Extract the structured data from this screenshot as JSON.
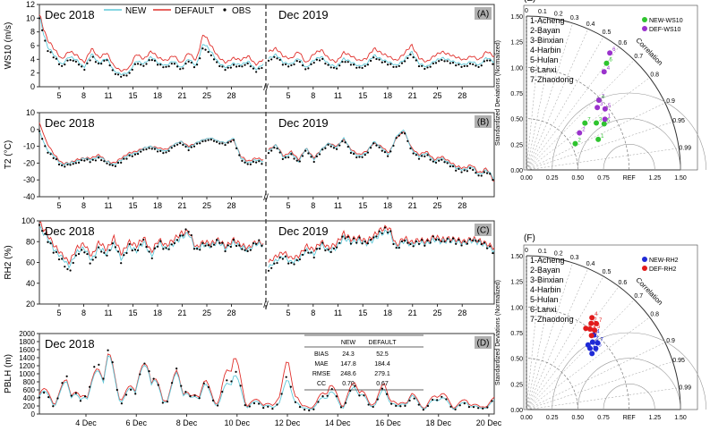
{
  "colors": {
    "new": "#5ec8d8",
    "default": "#e0302c",
    "obs": "#000000",
    "new_ws10": "#2fc42f",
    "def_ws10": "#9a32cc",
    "new_rh2": "#1f2ad6",
    "def_rh2": "#e21b1b",
    "panel_tag_bg": "#b0b0b0"
  },
  "chart_data": [
    {
      "id": "A",
      "type": "line",
      "panel_label": "(A)",
      "ylabel": "WS10 (m/s)",
      "ylim": [
        0,
        12
      ],
      "yticks": [
        "0",
        "2",
        "4",
        "6",
        "8",
        "10",
        "12"
      ],
      "xticks_left": [
        "5",
        "8",
        "11",
        "15",
        "18",
        "21",
        "25",
        "28"
      ],
      "xticks_right": [
        "5",
        "8",
        "11",
        "15",
        "18",
        "21",
        "25",
        "28"
      ],
      "period_labels": [
        "Dec 2018",
        "Dec 2019"
      ],
      "legend": [
        {
          "name": "NEW"
        },
        {
          "name": "DEFAULT"
        },
        {
          "name": "OBS"
        }
      ],
      "series_left": {
        "obs": [
          10.0,
          5.5,
          4.3,
          2.9,
          4.0,
          3.6,
          2.5,
          4.4,
          3.2,
          4.0,
          2.0,
          1.5,
          1.8,
          3.5,
          3.0,
          4.1,
          3.2,
          2.8,
          3.5,
          2.4,
          3.8,
          2.7,
          5.8,
          4.6,
          3.2,
          2.5,
          3.1,
          2.9,
          3.4,
          2.2,
          3.0
        ],
        "new": [
          10.2,
          6.0,
          4.6,
          3.2,
          4.4,
          3.9,
          2.8,
          4.8,
          3.4,
          4.2,
          2.3,
          1.8,
          2.1,
          3.8,
          3.3,
          4.4,
          3.4,
          3.1,
          3.8,
          2.7,
          4.1,
          3.0,
          6.4,
          5.1,
          3.5,
          2.8,
          3.4,
          3.2,
          3.7,
          2.5,
          3.3
        ],
        "default": [
          10.5,
          7.0,
          5.5,
          4.0,
          5.2,
          4.6,
          3.5,
          5.6,
          4.2,
          5.0,
          3.0,
          2.3,
          2.7,
          4.8,
          4.0,
          5.2,
          4.2,
          3.8,
          4.6,
          3.4,
          5.0,
          3.8,
          7.8,
          6.0,
          4.3,
          3.5,
          4.2,
          3.9,
          4.5,
          3.2,
          4.0
        ]
      },
      "series_right": {
        "obs": [
          3.8,
          4.4,
          3.2,
          3.0,
          3.9,
          2.4,
          3.6,
          4.1,
          3.0,
          2.6,
          3.8,
          3.3,
          2.7,
          3.0,
          4.3,
          3.7,
          3.3,
          2.8,
          3.6,
          4.8,
          3.1,
          2.6,
          3.4,
          3.9,
          3.6,
          3.2,
          2.9,
          3.4,
          2.8,
          4.0,
          3.3
        ],
        "new": [
          4.1,
          4.7,
          3.5,
          3.3,
          4.2,
          2.7,
          3.9,
          4.4,
          3.3,
          2.9,
          4.1,
          3.6,
          3.0,
          3.3,
          4.6,
          4.0,
          3.6,
          3.1,
          3.9,
          5.1,
          3.4,
          2.9,
          3.7,
          4.2,
          3.9,
          3.5,
          3.2,
          3.7,
          3.1,
          4.3,
          3.6
        ],
        "default": [
          5.1,
          5.6,
          4.4,
          4.1,
          5.2,
          3.4,
          4.8,
          5.4,
          4.1,
          3.6,
          5.0,
          4.5,
          3.8,
          4.1,
          5.6,
          4.9,
          4.4,
          3.8,
          4.8,
          6.1,
          4.2,
          3.6,
          4.5,
          5.1,
          4.7,
          4.3,
          3.9,
          4.5,
          3.9,
          5.2,
          4.4
        ]
      }
    },
    {
      "id": "B",
      "type": "line",
      "panel_label": "(B)",
      "ylabel": "T2 (°C)",
      "ylim": [
        -40,
        10
      ],
      "yticks": [
        "-40",
        "-30",
        "-20",
        "-10",
        "0",
        "10"
      ],
      "xticks_left": [
        "5",
        "8",
        "11",
        "15",
        "18",
        "21",
        "25",
        "28"
      ],
      "xticks_right": [
        "5",
        "8",
        "11",
        "15",
        "18",
        "21",
        "25",
        "28"
      ],
      "period_labels": [
        "Dec 2018",
        "Dec 2019"
      ],
      "series_left": {
        "obs": [
          -1,
          -13,
          -17,
          -22,
          -21,
          -20,
          -18,
          -19,
          -17,
          -20,
          -22,
          -19,
          -16,
          -15,
          -12,
          -11,
          -13,
          -14,
          -10,
          -8,
          -12,
          -9,
          -7,
          -6,
          -8,
          -9,
          -6,
          -18,
          -21,
          -19,
          -20
        ],
        "new": [
          -1,
          -12,
          -16,
          -21,
          -20,
          -19,
          -17,
          -18,
          -16,
          -19,
          -21,
          -18,
          -15,
          -14,
          -11,
          -10,
          -12,
          -13,
          -9,
          -7,
          -11,
          -8,
          -6,
          -5,
          -7,
          -8,
          -5,
          -17,
          -20,
          -18,
          -19
        ],
        "default": [
          4,
          -8,
          -15,
          -20,
          -20,
          -18,
          -17,
          -17,
          -15,
          -19,
          -20,
          -17,
          -14,
          -13,
          -11,
          -10,
          -11,
          -12,
          -9,
          -7,
          -10,
          -8,
          -6,
          -5,
          -7,
          -8,
          -6,
          -16,
          -19,
          -17,
          -18
        ]
      },
      "series_right": {
        "obs": [
          -14,
          -10,
          -18,
          -15,
          -20,
          -12,
          -19,
          -13,
          -9,
          -12,
          -6,
          -14,
          -17,
          -15,
          -8,
          -12,
          -16,
          -5,
          -1,
          -13,
          -17,
          -15,
          -20,
          -18,
          -21,
          -24,
          -25,
          -23,
          -28,
          -25,
          -30
        ],
        "new": [
          -13,
          -9,
          -17,
          -14,
          -19,
          -11,
          -18,
          -12,
          -8,
          -11,
          -5,
          -13,
          -16,
          -14,
          -7,
          -11,
          -15,
          -4,
          0,
          -12,
          -16,
          -14,
          -19,
          -17,
          -20,
          -23,
          -24,
          -22,
          -27,
          -24,
          -29
        ],
        "default": [
          -12,
          -9,
          -16,
          -13,
          -18,
          -11,
          -17,
          -12,
          -8,
          -10,
          -6,
          -12,
          -15,
          -13,
          -8,
          -10,
          -14,
          -5,
          -1,
          -11,
          -15,
          -13,
          -18,
          -16,
          -19,
          -22,
          -23,
          -21,
          -26,
          -23,
          -31
        ]
      }
    },
    {
      "id": "C",
      "type": "line",
      "panel_label": "(C)",
      "ylabel": "RH2 (%)",
      "ylim": [
        20,
        100
      ],
      "yticks": [
        "20",
        "40",
        "60",
        "80",
        "100"
      ],
      "xticks_left": [
        "5",
        "8",
        "11",
        "15",
        "18",
        "21",
        "25",
        "28"
      ],
      "xticks_right": [
        "5",
        "8",
        "11",
        "15",
        "18",
        "21",
        "25",
        "28"
      ],
      "period_labels": [
        "Dec 2018",
        "Dec 2019"
      ],
      "series_left": {
        "obs": [
          96,
          83,
          70,
          62,
          50,
          68,
          72,
          58,
          74,
          66,
          80,
          60,
          76,
          70,
          82,
          64,
          80,
          72,
          78,
          86,
          92,
          70,
          78,
          75,
          82,
          72,
          80,
          74,
          70,
          80,
          78
        ],
        "new": [
          93,
          85,
          72,
          65,
          56,
          70,
          74,
          62,
          75,
          68,
          78,
          63,
          76,
          71,
          80,
          66,
          79,
          73,
          78,
          84,
          88,
          72,
          77,
          76,
          80,
          73,
          79,
          75,
          72,
          78,
          77
        ],
        "default": [
          98,
          88,
          76,
          68,
          60,
          74,
          78,
          66,
          80,
          72,
          84,
          68,
          80,
          76,
          84,
          70,
          82,
          76,
          82,
          88,
          90,
          74,
          80,
          78,
          82,
          75,
          82,
          77,
          74,
          80,
          78
        ]
      },
      "series_right": {
        "obs": [
          52,
          60,
          66,
          58,
          62,
          72,
          66,
          78,
          70,
          74,
          86,
          80,
          82,
          78,
          84,
          90,
          92,
          72,
          82,
          76,
          80,
          78,
          84,
          80,
          82,
          80,
          78,
          82,
          80,
          76,
          70
        ],
        "new": [
          55,
          62,
          66,
          60,
          63,
          72,
          68,
          77,
          71,
          74,
          84,
          79,
          81,
          78,
          82,
          88,
          90,
          74,
          81,
          77,
          79,
          78,
          82,
          80,
          81,
          80,
          78,
          81,
          79,
          76,
          71
        ],
        "default": [
          60,
          66,
          70,
          64,
          66,
          76,
          72,
          80,
          74,
          78,
          88,
          82,
          84,
          80,
          86,
          92,
          94,
          76,
          84,
          79,
          82,
          80,
          85,
          82,
          83,
          82,
          80,
          83,
          81,
          78,
          74
        ]
      }
    },
    {
      "id": "D",
      "type": "line",
      "panel_label": "(D)",
      "ylabel": "PBLH (m)",
      "ylim": [
        0,
        2000
      ],
      "yticks": [
        "0",
        "200",
        "400",
        "600",
        "800",
        "1000",
        "1200",
        "1400",
        "1600",
        "1800",
        "2000"
      ],
      "xticks": [
        "4 Dec",
        "6 Dec",
        "8 Dec",
        "10 Dec",
        "12 Dec",
        "14 Dec",
        "16 Dec",
        "18 Dec",
        "20 Dec"
      ],
      "period_label": "Dec 2018",
      "series": {
        "obs": [
          750,
          260,
          1050,
          320,
          1200,
          1750,
          300,
          900,
          1500,
          260,
          1200,
          400,
          850,
          230,
          1450,
          220,
          300,
          120,
          1000,
          100,
          150,
          800,
          180,
          900,
          150,
          700,
          140,
          450,
          120,
          600,
          150,
          300,
          120,
          380
        ],
        "new": [
          800,
          300,
          900,
          350,
          1000,
          1600,
          350,
          950,
          1400,
          300,
          1100,
          380,
          800,
          250,
          1300,
          250,
          350,
          150,
          900,
          150,
          200,
          700,
          200,
          850,
          200,
          650,
          180,
          500,
          150,
          550,
          180,
          330,
          150,
          350
        ],
        "default": [
          880,
          350,
          950,
          420,
          1050,
          1650,
          420,
          1000,
          1450,
          350,
          1150,
          420,
          900,
          300,
          1900,
          300,
          400,
          200,
          1400,
          200,
          250,
          900,
          250,
          1000,
          230,
          800,
          220,
          550,
          180,
          700,
          220,
          400,
          180,
          420
        ]
      },
      "stats": {
        "headers": [
          "",
          "NEW",
          "DEFAULT"
        ],
        "rows": [
          [
            "BIAS",
            "24.3",
            "52.5"
          ],
          [
            "MAE",
            "147.8",
            "184.4"
          ],
          [
            "RMSE",
            "248.6",
            "279.1"
          ],
          [
            "CC",
            "0.70",
            "0.67"
          ]
        ]
      }
    },
    {
      "id": "E",
      "type": "scatter",
      "diagram": "taylor",
      "panel_label": "(E)",
      "ylabel": "Standardized Deviations (Normalized)",
      "radial_ticks": [
        "0.00",
        "0.25",
        "0.50",
        "0.75",
        "1.00",
        "1.25",
        "1.50"
      ],
      "x_ticks": [
        "0.00",
        "0.25",
        "0.50",
        "0.75",
        "REF",
        "1.25",
        "1.50"
      ],
      "correlation_ticks": [
        "0",
        "0.1",
        "0.2",
        "0.3",
        "0.4",
        "0.5",
        "0.6",
        "0.7",
        "0.8",
        "0.9",
        "0.95",
        "0.99"
      ],
      "correlation_label": "Correlation",
      "stations": [
        "1-Acheng",
        "2-Bayan",
        "3-Binxian",
        "4-Harbin",
        "5-Hulan",
        "6-Lanxi",
        "7-Zhaodong"
      ],
      "legend": [
        "NEW-WS10",
        "DEF-WS10"
      ],
      "series": [
        {
          "name": "NEW-WS10",
          "points": [
            {
              "label": "1",
              "r": 0.92,
              "sd": 0.76
            },
            {
              "label": "2",
              "r": 0.88,
              "sd": 0.54
            },
            {
              "label": "3",
              "r": 0.83,
              "sd": 0.82
            },
            {
              "label": "4",
              "r": 0.72,
              "sd": 0.98
            },
            {
              "label": "5",
              "r": 0.86,
              "sd": 0.88
            },
            {
              "label": "6",
              "r": 0.6,
              "sd": 1.3
            },
            {
              "label": "7",
              "r": 0.78,
              "sd": 0.73
            }
          ]
        },
        {
          "name": "DEF-WS10",
          "points": [
            {
              "label": "1",
              "r": 0.84,
              "sd": 0.91
            },
            {
              "label": "2",
              "r": 0.82,
              "sd": 0.63
            },
            {
              "label": "3",
              "r": 0.75,
              "sd": 0.92
            },
            {
              "label": "4",
              "r": 0.62,
              "sd": 1.22
            },
            {
              "label": "5",
              "r": 0.79,
              "sd": 0.97
            },
            {
              "label": "6",
              "r": 0.58,
              "sd": 1.4
            },
            {
              "label": "7",
              "r": 0.72,
              "sd": 0.98
            }
          ]
        }
      ]
    },
    {
      "id": "F",
      "type": "scatter",
      "diagram": "taylor",
      "panel_label": "(F)",
      "ylabel": "Standardized Deviations (Normalized)",
      "radial_ticks": [
        "0.00",
        "0.25",
        "0.50",
        "0.75",
        "1.00",
        "1.25",
        "1.50"
      ],
      "x_ticks": [
        "0.00",
        "0.25",
        "0.50",
        "0.75",
        "REF",
        "1.25",
        "1.50"
      ],
      "correlation_ticks": [
        "0",
        "0.1",
        "0.2",
        "0.3",
        "0.4",
        "0.5",
        "0.6",
        "0.7",
        "0.8",
        "0.9",
        "0.95",
        "0.99"
      ],
      "correlation_label": "Correlation",
      "stations": [
        "1-Acheng",
        "2-Bayan",
        "3-Binxian",
        "4-Harbin",
        "5-Hulan",
        "6-Lanxi",
        "7-Zhaodong"
      ],
      "legend": [
        "NEW-RH2",
        "DEF-RH2"
      ],
      "series": [
        {
          "name": "NEW-RH2",
          "points": [
            {
              "label": "1",
              "r": 0.72,
              "sd": 0.86
            },
            {
              "label": "2",
              "r": 0.7,
              "sd": 0.92
            },
            {
              "label": "3",
              "r": 0.76,
              "sd": 0.84
            },
            {
              "label": "4",
              "r": 0.67,
              "sd": 0.98
            },
            {
              "label": "5",
              "r": 0.75,
              "sd": 0.9
            },
            {
              "label": "6",
              "r": 0.69,
              "sd": 0.87
            },
            {
              "label": "7",
              "r": 0.73,
              "sd": 0.95
            }
          ]
        },
        {
          "name": "DEF-RH2",
          "points": [
            {
              "label": "1",
              "r": 0.62,
              "sd": 1.0
            },
            {
              "label": "2",
              "r": 0.6,
              "sd": 1.05
            },
            {
              "label": "3",
              "r": 0.66,
              "sd": 0.96
            },
            {
              "label": "4",
              "r": 0.58,
              "sd": 1.1
            },
            {
              "label": "5",
              "r": 0.65,
              "sd": 1.02
            },
            {
              "label": "6",
              "r": 0.59,
              "sd": 0.98
            },
            {
              "label": "7",
              "r": 0.63,
              "sd": 1.08
            }
          ]
        }
      ]
    }
  ]
}
